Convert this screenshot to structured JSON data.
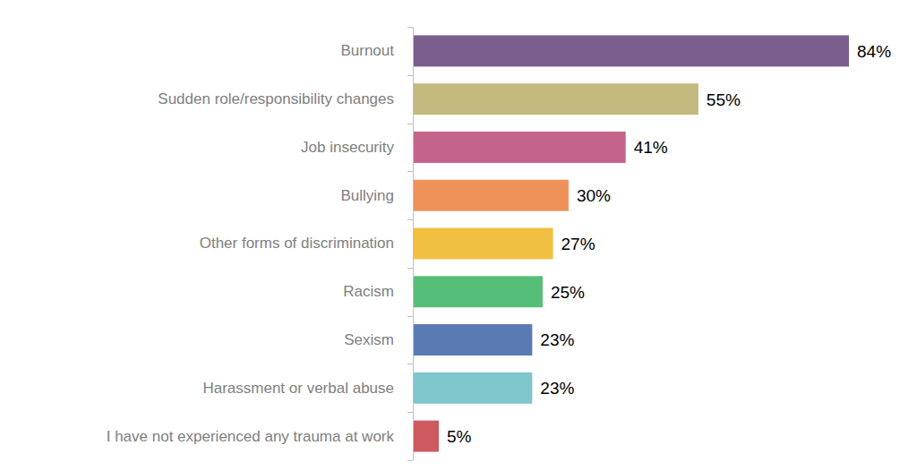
{
  "chart_data": {
    "type": "bar",
    "orientation": "horizontal",
    "categories": [
      "Burnout",
      "Sudden role/responsibility changes",
      "Job insecurity",
      "Bullying",
      "Other forms of discrimination",
      "Racism",
      "Sexism",
      "Harassment or verbal abuse",
      "I have not experienced any trauma at work"
    ],
    "values": [
      84,
      55,
      41,
      30,
      27,
      25,
      23,
      23,
      5
    ],
    "value_labels": [
      "84%",
      "55%",
      "41%",
      "30%",
      "27%",
      "25%",
      "23%",
      "23%",
      "5%"
    ],
    "colors": [
      "#7b5e8e",
      "#c4b97e",
      "#c4648c",
      "#ef925a",
      "#f2c040",
      "#55bf78",
      "#5a7ab3",
      "#80c6cd",
      "#cd5a5e"
    ],
    "xlim": [
      0,
      84
    ],
    "data_labels": true,
    "tick_labels": "y",
    "grid": false
  }
}
